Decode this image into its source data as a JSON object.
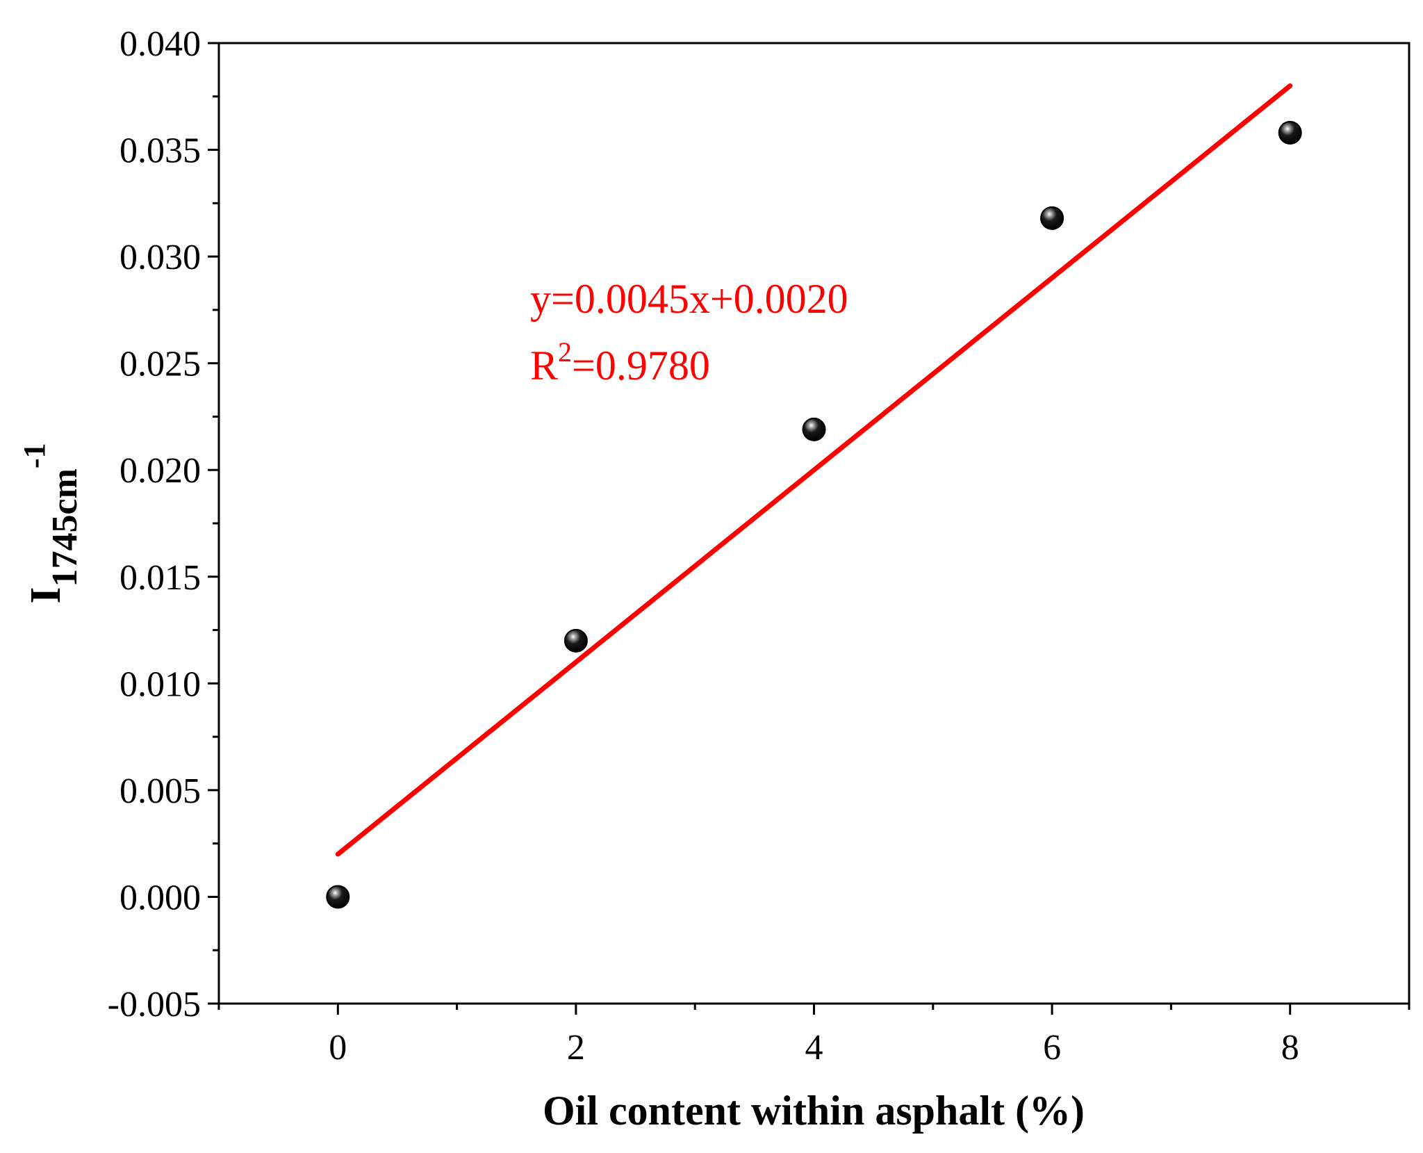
{
  "chart_data": {
    "type": "scatter",
    "xlabel": "Oil content within asphalt (%)",
    "ylabel": {
      "base": "I",
      "sub": "1745cm",
      "sup": "-1"
    },
    "xlim": [
      -1,
      9
    ],
    "ylim": [
      -0.005,
      0.04
    ],
    "x_ticks": [
      0,
      2,
      4,
      6,
      8
    ],
    "x_tick_labels": [
      "0",
      "2",
      "4",
      "6",
      "8"
    ],
    "y_ticks": [
      -0.005,
      0.0,
      0.005,
      0.01,
      0.015,
      0.02,
      0.025,
      0.03,
      0.035,
      0.04
    ],
    "y_tick_labels": [
      "-0.005",
      "0.000",
      "0.005",
      "0.010",
      "0.015",
      "0.020",
      "0.025",
      "0.030",
      "0.035",
      "0.040"
    ],
    "grid": false,
    "series": [
      {
        "x": [
          0,
          2,
          4,
          6,
          8
        ],
        "y": [
          0.0,
          0.012,
          0.0219,
          0.0318,
          0.0358
        ]
      }
    ],
    "fit": {
      "slope": 0.0045,
      "intercept": 0.002,
      "x_range": [
        0,
        8
      ],
      "equation": "y=0.0045x+0.0020",
      "r2_prefix": "R",
      "r2_sup": "2",
      "r2_value": "=0.9780"
    },
    "colors": {
      "points": "#000000",
      "fit": "#ff0000",
      "axes": "#000000"
    }
  }
}
